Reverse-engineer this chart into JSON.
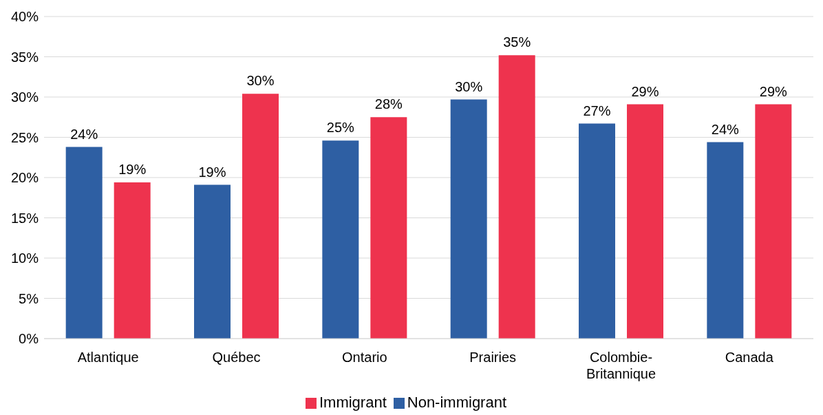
{
  "chart_data": {
    "type": "bar",
    "categories": [
      "Atlantique",
      "Québec",
      "Ontario",
      "Prairies",
      "Colombie-Britannique",
      "Canada"
    ],
    "series": [
      {
        "name": "Non-immigrant",
        "color": "#2e5fa3",
        "values": [
          23.8,
          19.1,
          24.6,
          29.7,
          26.7,
          24.4
        ],
        "value_labels": [
          "24%",
          "19%",
          "25%",
          "30%",
          "27%",
          "24%"
        ]
      },
      {
        "name": "Immigrant",
        "color": "#ee334e",
        "values": [
          19.4,
          30.4,
          27.5,
          35.2,
          29.1,
          29.1
        ],
        "value_labels": [
          "19%",
          "30%",
          "28%",
          "35%",
          "29%",
          "29%"
        ]
      }
    ],
    "ylim": [
      0,
      40
    ],
    "yticks": [
      {
        "value": 0,
        "label": "0%"
      },
      {
        "value": 5,
        "label": "5%"
      },
      {
        "value": 10,
        "label": "10%"
      },
      {
        "value": 15,
        "label": "15%"
      },
      {
        "value": 20,
        "label": "20%"
      },
      {
        "value": 25,
        "label": "25%"
      },
      {
        "value": 30,
        "label": "30%"
      },
      {
        "value": 35,
        "label": "35%"
      },
      {
        "value": 40,
        "label": "40%"
      }
    ],
    "grid": "y",
    "legend": "bottom"
  }
}
